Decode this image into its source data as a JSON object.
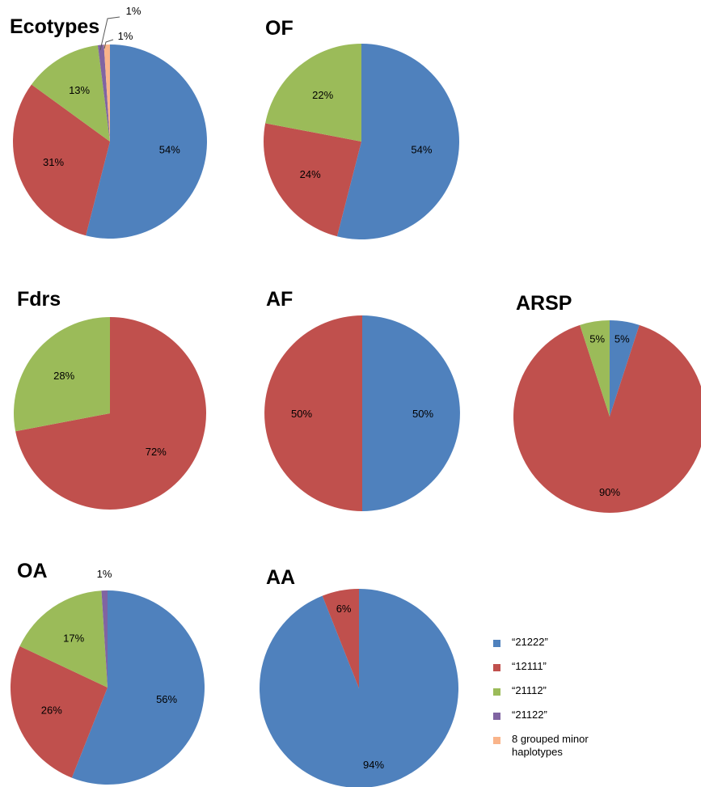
{
  "colors": {
    "21222": "#4F81BD",
    "12111": "#C0504D",
    "21112": "#9BBB59",
    "21122": "#8064A2",
    "minor": "#F9B48A"
  },
  "legend": [
    {
      "key": "21222",
      "label": "“21222”"
    },
    {
      "key": "12111",
      "label": "“12111”"
    },
    {
      "key": "21112",
      "label": "“21112”"
    },
    {
      "key": "21122",
      "label": "“21122”"
    },
    {
      "key": "minor",
      "label": "8 grouped minor\nhaplotypes"
    }
  ],
  "chart_data": [
    {
      "type": "pie",
      "title": "Ecotypes",
      "slices": [
        {
          "key": "21222",
          "value": 54,
          "label": "54%"
        },
        {
          "key": "12111",
          "value": 31,
          "label": "31%"
        },
        {
          "key": "21112",
          "value": 13,
          "label": "13%"
        },
        {
          "key": "21122",
          "value": 1,
          "label": "1%"
        },
        {
          "key": "minor",
          "value": 1,
          "label": "1%"
        }
      ]
    },
    {
      "type": "pie",
      "title": "OF",
      "slices": [
        {
          "key": "21222",
          "value": 54,
          "label": "54%"
        },
        {
          "key": "12111",
          "value": 24,
          "label": "24%"
        },
        {
          "key": "21112",
          "value": 22,
          "label": "22%"
        }
      ]
    },
    {
      "type": "pie",
      "title": "Fdrs",
      "slices": [
        {
          "key": "12111",
          "value": 72,
          "label": "72%"
        },
        {
          "key": "21112",
          "value": 28,
          "label": "28%"
        }
      ]
    },
    {
      "type": "pie",
      "title": "AF",
      "slices": [
        {
          "key": "21222",
          "value": 50,
          "label": "50%"
        },
        {
          "key": "12111",
          "value": 50,
          "label": "50%"
        }
      ]
    },
    {
      "type": "pie",
      "title": "ARSP",
      "slices": [
        {
          "key": "21222",
          "value": 5,
          "label": "5%"
        },
        {
          "key": "12111",
          "value": 90,
          "label": "90%"
        },
        {
          "key": "21112",
          "value": 5,
          "label": "5%"
        }
      ]
    },
    {
      "type": "pie",
      "title": "OA",
      "slices": [
        {
          "key": "21222",
          "value": 56,
          "label": "56%"
        },
        {
          "key": "12111",
          "value": 26,
          "label": "26%"
        },
        {
          "key": "21112",
          "value": 17,
          "label": "17%"
        },
        {
          "key": "21122",
          "value": 1,
          "label": "1%"
        }
      ]
    },
    {
      "type": "pie",
      "title": "AA",
      "slices": [
        {
          "key": "21222",
          "value": 94,
          "label": "94%"
        },
        {
          "key": "12111",
          "value": 6,
          "label": "6%"
        }
      ]
    }
  ]
}
